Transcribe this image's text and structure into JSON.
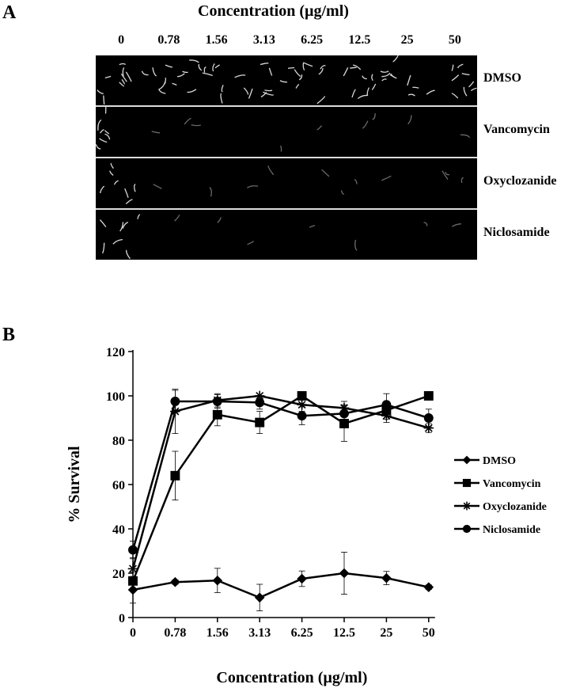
{
  "panelA": {
    "letter": "A",
    "title": "Concentration (µg/ml)",
    "concentrations": [
      "0",
      "0.78",
      "1.56",
      "3.13",
      "6.25",
      "12.5",
      "25",
      "50"
    ],
    "rows": [
      {
        "label": "DMSO",
        "worm_density": [
          0.9,
          0.9,
          0.9,
          0.9,
          0.9,
          0.9,
          0.9,
          0.9
        ]
      },
      {
        "label": "Vancomycin",
        "worm_density": [
          0.7,
          0.2,
          0.05,
          0.05,
          0.05,
          0.2,
          0.05,
          0.05
        ]
      },
      {
        "label": "Oxyclozanide",
        "worm_density": [
          0.7,
          0.05,
          0.05,
          0.15,
          0.05,
          0.15,
          0.05,
          0.25
        ]
      },
      {
        "label": "Niclosamide",
        "worm_density": [
          0.7,
          0.1,
          0.05,
          0.1,
          0.1,
          0.1,
          0.05,
          0.1
        ]
      }
    ]
  },
  "panelB": {
    "letter": "B"
  },
  "chart_data": {
    "type": "line",
    "x": [
      "0",
      "0.78",
      "1.56",
      "3.13",
      "6.25",
      "12.5",
      "25",
      "50"
    ],
    "xlabel": "Concentration (µg/ml)",
    "ylabel": "% Survival",
    "ylim": [
      0,
      120
    ],
    "yticks": [
      "0",
      "20",
      "40",
      "60",
      "80",
      "100",
      "120"
    ],
    "legend_position": "right",
    "series": [
      {
        "name": "DMSO",
        "marker": "diamond",
        "values": [
          12.5,
          16,
          16.7,
          9,
          17.5,
          20,
          17.8,
          13.7
        ],
        "errors": [
          6,
          1,
          5.5,
          6,
          3.5,
          9.5,
          3,
          1
        ]
      },
      {
        "name": "Vancomycin",
        "marker": "square",
        "values": [
          16.5,
          64,
          91.5,
          88,
          100,
          87.5,
          93.5,
          100
        ],
        "errors": [
          4,
          11,
          5,
          5,
          0,
          8,
          4,
          0
        ]
      },
      {
        "name": "Oxyclozanide",
        "marker": "star",
        "values": [
          22,
          93,
          98,
          100,
          96,
          94.5,
          91,
          85.5
        ],
        "errors": [
          5,
          10,
          3,
          0,
          3,
          3,
          3,
          2
        ]
      },
      {
        "name": "Niclosamide",
        "marker": "circle",
        "values": [
          30.5,
          97.5,
          97.5,
          97,
          91,
          92,
          96,
          90
        ],
        "errors": [
          4,
          5,
          3,
          3,
          4,
          4,
          5,
          4
        ]
      }
    ]
  }
}
